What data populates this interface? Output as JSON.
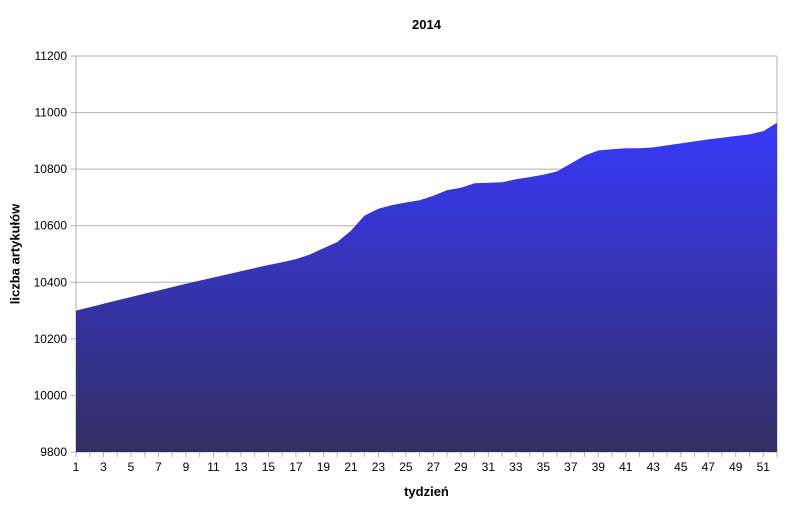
{
  "chart_data": {
    "type": "area",
    "title": "2014",
    "xlabel": "tydzień",
    "ylabel": "liczba artykułów",
    "grid": true,
    "legend": "none",
    "ylim": [
      9800,
      11200
    ],
    "y_ticks": [
      9800,
      10000,
      10200,
      10400,
      10600,
      10800,
      11000,
      11200
    ],
    "xtick_labels": [
      1,
      3,
      5,
      7,
      9,
      11,
      13,
      15,
      17,
      19,
      21,
      23,
      25,
      27,
      29,
      31,
      33,
      35,
      37,
      39,
      41,
      43,
      45,
      47,
      49,
      51
    ],
    "x": [
      1,
      2,
      3,
      4,
      5,
      6,
      7,
      8,
      9,
      10,
      11,
      12,
      13,
      14,
      15,
      16,
      17,
      18,
      19,
      20,
      21,
      22,
      23,
      24,
      25,
      26,
      27,
      28,
      29,
      30,
      31,
      32,
      33,
      34,
      35,
      36,
      37,
      38,
      39,
      40,
      41,
      42,
      43,
      44,
      45,
      46,
      47,
      48,
      49,
      50,
      51,
      52
    ],
    "series": [
      {
        "name": "liczba artykułów",
        "values": [
          10300,
          10312,
          10324,
          10336,
          10348,
          10360,
          10371,
          10383,
          10395,
          10406,
          10417,
          10428,
          10439,
          10450,
          10461,
          10471,
          10482,
          10498,
          10520,
          10542,
          10582,
          10636,
          10660,
          10673,
          10682,
          10690,
          10706,
          10726,
          10734,
          10750,
          10752,
          10754,
          10764,
          10772,
          10780,
          10792,
          10820,
          10848,
          10866,
          10870,
          10874,
          10874,
          10877,
          10884,
          10891,
          10898,
          10905,
          10911,
          10917,
          10923,
          10934,
          10964
        ]
      }
    ],
    "colors": {
      "fill_top": "#3838fb",
      "fill_bottom": "#322f61",
      "gridline": "#b3b3b3",
      "axis": "#b3b3b3",
      "tick": "#b3b3b3",
      "text": "#000000",
      "background": "#ffffff"
    }
  }
}
